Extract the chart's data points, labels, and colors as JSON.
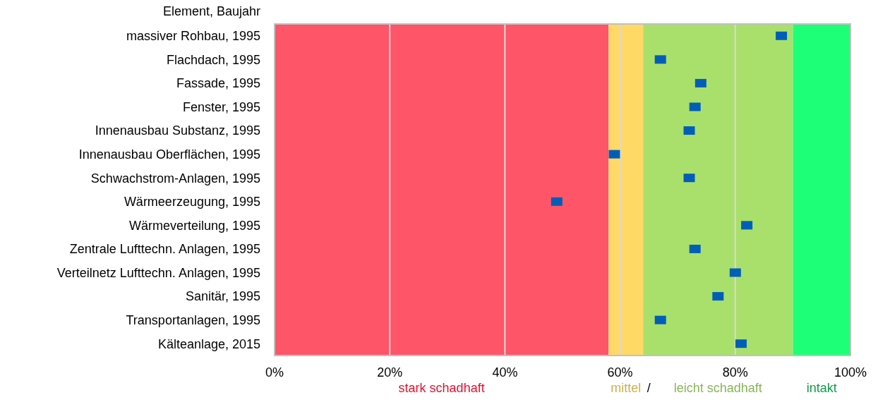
{
  "chart_data": {
    "type": "scatter",
    "orientation": "horizontal",
    "ylabel": "Element, Baujahr",
    "categories": [
      "massiver Rohbau, 1995",
      "Flachdach, 1995",
      "Fassade, 1995",
      "Fenster, 1995",
      "Innenausbau Substanz, 1995",
      "Innenausbau Oberflächen, 1995",
      "Schwachstrom-Anlagen, 1995",
      "Wärmeerzeugung, 1995",
      "Wärmeverteilung, 1995",
      "Zentrale Lufttechn. Anlagen, 1995",
      "Verteilnetz Lufttechn. Anlagen, 1995",
      "Sanitär, 1995",
      "Transportanlagen, 1995",
      "Kälteanlage, 2015"
    ],
    "values": [
      88,
      67,
      74,
      73,
      72,
      59,
      72,
      49,
      82,
      73,
      80,
      77,
      67,
      81
    ],
    "color": "#005eb8",
    "marker": "square",
    "xlim": [
      0,
      100
    ],
    "xticks": [
      {
        "value": 0,
        "label": "0%"
      },
      {
        "value": 20,
        "label": "20%"
      },
      {
        "value": 40,
        "label": "40%"
      },
      {
        "value": 60,
        "label": "60%"
      },
      {
        "value": 80,
        "label": "80%"
      },
      {
        "value": 100,
        "label": "100%"
      }
    ],
    "grid": "x",
    "bands": [
      {
        "axis": "x",
        "from": 0,
        "to": 58,
        "label": "stark schadhaft",
        "color": "#ff5569"
      },
      {
        "axis": "x",
        "from": 58,
        "to": 64,
        "label": "mittel",
        "color": "#ffd966"
      },
      {
        "axis": "x",
        "from": 64,
        "to": 90,
        "label": "leicht schadhaft",
        "color": "#a9e06b"
      },
      {
        "axis": "x",
        "from": 90,
        "to": 100,
        "label": "intakt",
        "color": "#1eff78"
      }
    ],
    "annotations": [
      "/"
    ]
  }
}
